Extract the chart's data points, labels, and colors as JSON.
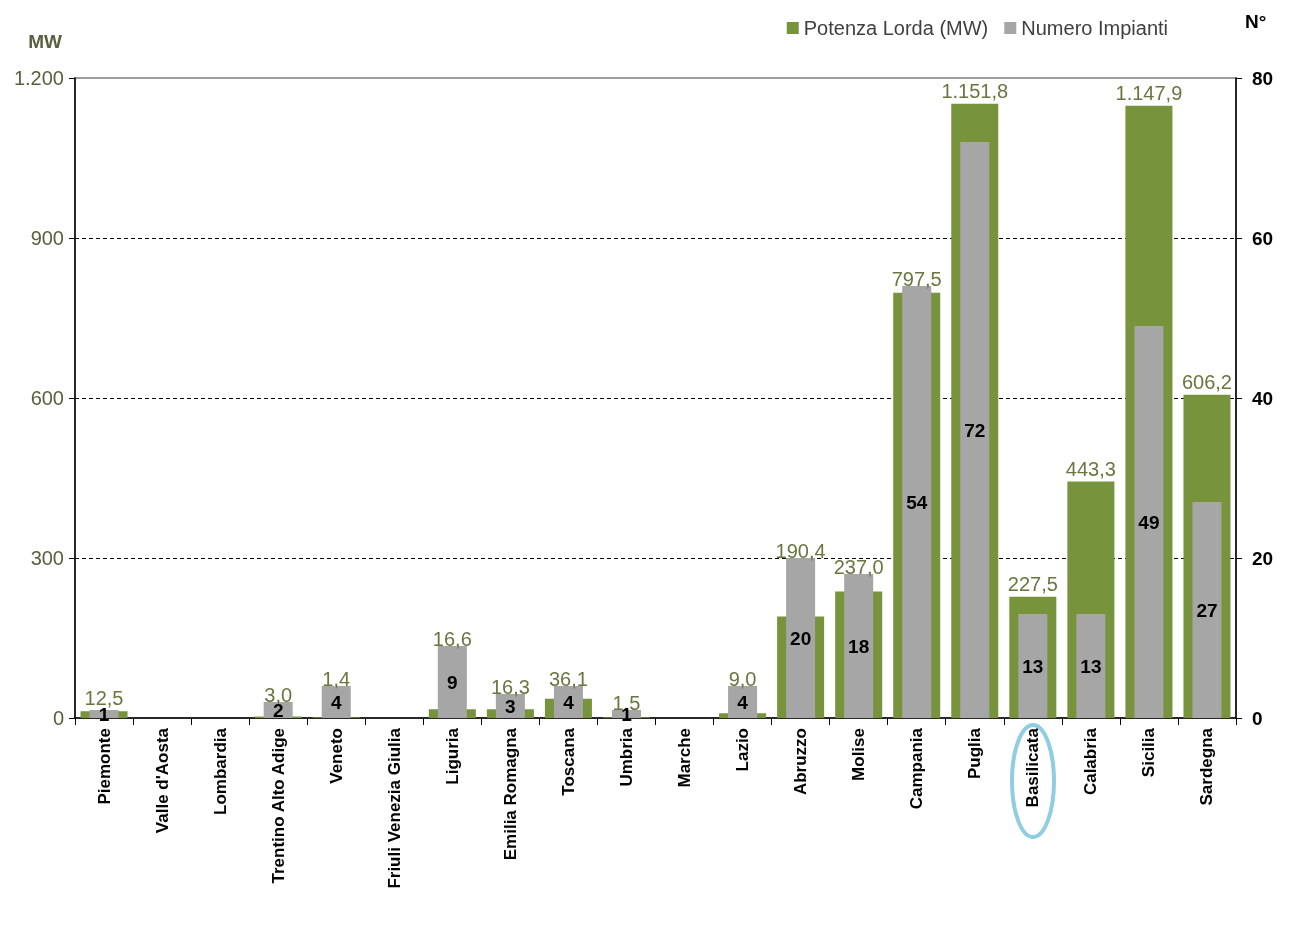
{
  "chart_data": {
    "type": "bar",
    "ylabel": "MW",
    "y2label": "N°",
    "categories": [
      "Piemonte",
      "Valle d'Aosta",
      "Lombardia",
      "Trentino Alto Adige",
      "Veneto",
      "Friuli Venezia Giulia",
      "Liguria",
      "Emilia Romagna",
      "Toscana",
      "Umbria",
      "Marche",
      "Lazio",
      "Abruzzo",
      "Molise",
      "Campania",
      "Puglia",
      "Basilicata",
      "Calabria",
      "Sicilia",
      "Sardegna"
    ],
    "ylim": [
      0,
      1200
    ],
    "yticks": [
      0,
      300,
      600,
      900,
      {
        "value": 1200,
        "label": "1.200"
      }
    ],
    "y2lim": [
      0,
      80
    ],
    "y2ticks": [
      0,
      20,
      40,
      60,
      80
    ],
    "grid": "y",
    "legend": "top right",
    "series": [
      {
        "name": "Potenza Lorda (MW)",
        "color": "#77933c",
        "values": [
          12.5,
          null,
          null,
          3.0,
          1.4,
          null,
          16.6,
          16.3,
          36.1,
          1.5,
          null,
          9.0,
          190.4,
          237.0,
          797.5,
          1151.8,
          227.5,
          443.3,
          1147.9,
          606.2
        ],
        "value_labels": [
          "12,5",
          null,
          null,
          "3,0",
          "1,4",
          null,
          "16,6",
          "16,3",
          "36,1",
          "1,5",
          null,
          "9,0",
          "190,4",
          "237,0",
          "797,5",
          "1.151,8",
          "227,5",
          "443,3",
          "1.147,9",
          "606,2"
        ]
      },
      {
        "name": "Numero Impianti",
        "color": "#a6a6a6",
        "axis": "y2",
        "values": [
          1,
          null,
          null,
          2,
          4,
          null,
          9,
          3,
          4,
          1,
          null,
          4,
          20,
          18,
          54,
          72,
          13,
          13,
          49,
          27
        ],
        "value_labels": [
          "1",
          null,
          null,
          "2",
          "4",
          null,
          "9",
          "3",
          "4",
          "1",
          null,
          "4",
          "20",
          "18",
          "54",
          "72",
          "13",
          "13",
          "49",
          "27"
        ]
      }
    ]
  }
}
